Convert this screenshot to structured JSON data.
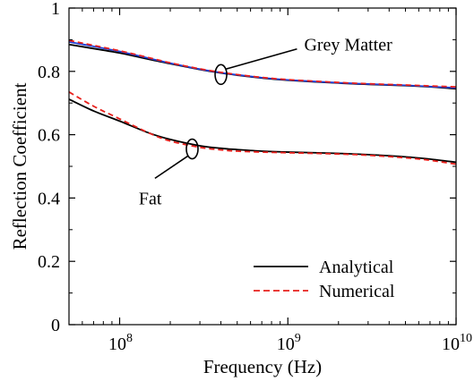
{
  "chart_data": {
    "type": "line",
    "xlabel": "Frequency (Hz)",
    "ylabel": "Reflection Coefficient",
    "xscale": "log",
    "xlim": [
      50000000,
      10000000000
    ],
    "ylim": [
      0,
      1
    ],
    "xticks": [
      {
        "value": 100000000,
        "base": "10",
        "exp": "8"
      },
      {
        "value": 1000000000,
        "base": "10",
        "exp": "9"
      },
      {
        "value": 10000000000,
        "base": "10",
        "exp": "10"
      }
    ],
    "yticks": [
      {
        "value": 0,
        "label": "0"
      },
      {
        "value": 0.2,
        "label": "0.2"
      },
      {
        "value": 0.4,
        "label": "0.4"
      },
      {
        "value": 0.6,
        "label": "0.6"
      },
      {
        "value": 0.8,
        "label": "0.8"
      },
      {
        "value": 1,
        "label": "1"
      }
    ],
    "grid": false,
    "legend_position": "bottom-right",
    "legend": [
      {
        "label": "Analytical",
        "color": "#000000",
        "style": "solid"
      },
      {
        "label": "Numerical",
        "color": "#e8201c",
        "style": "dashed"
      }
    ],
    "series": [
      {
        "group": "Grey Matter",
        "method": "Analytical",
        "color": "#000000",
        "dash": "",
        "x": [
          50000000,
          70000000,
          100000000,
          150000000,
          200000000,
          300000000,
          400000000,
          500000000,
          700000000,
          1000000000,
          2000000000,
          3000000000,
          5000000000,
          7000000000,
          10000000000
        ],
        "y": [
          0.885,
          0.872,
          0.858,
          0.838,
          0.824,
          0.806,
          0.795,
          0.788,
          0.779,
          0.772,
          0.763,
          0.759,
          0.755,
          0.751,
          0.745
        ]
      },
      {
        "group": "Grey Matter",
        "method": "Blue overlay",
        "color": "#1f3fd6",
        "dash": "",
        "x": [
          50000000,
          70000000,
          100000000,
          150000000,
          200000000,
          300000000,
          400000000,
          500000000,
          700000000,
          1000000000,
          2000000000,
          3000000000,
          5000000000,
          7000000000,
          10000000000
        ],
        "y": [
          0.893,
          0.879,
          0.863,
          0.841,
          0.826,
          0.807,
          0.796,
          0.789,
          0.78,
          0.773,
          0.764,
          0.76,
          0.756,
          0.752,
          0.748
        ]
      },
      {
        "group": "Grey Matter",
        "method": "Numerical",
        "color": "#e8201c",
        "dash": "6,4",
        "x": [
          50000000,
          70000000,
          100000000,
          150000000,
          200000000,
          300000000,
          400000000,
          500000000,
          700000000,
          1000000000,
          2000000000,
          3000000000,
          5000000000,
          7000000000,
          10000000000
        ],
        "y": [
          0.898,
          0.882,
          0.865,
          0.843,
          0.827,
          0.808,
          0.797,
          0.79,
          0.781,
          0.774,
          0.765,
          0.761,
          0.757,
          0.754,
          0.751
        ]
      },
      {
        "group": "Fat",
        "method": "Analytical",
        "color": "#000000",
        "dash": "",
        "x": [
          50000000,
          70000000,
          100000000,
          150000000,
          200000000,
          300000000,
          400000000,
          500000000,
          700000000,
          1000000000,
          2000000000,
          3000000000,
          5000000000,
          7000000000,
          10000000000
        ],
        "y": [
          0.712,
          0.675,
          0.643,
          0.605,
          0.585,
          0.565,
          0.557,
          0.553,
          0.548,
          0.545,
          0.541,
          0.537,
          0.53,
          0.523,
          0.513
        ]
      },
      {
        "group": "Fat",
        "method": "Numerical",
        "color": "#e8201c",
        "dash": "6,4",
        "x": [
          50000000,
          70000000,
          100000000,
          150000000,
          200000000,
          300000000,
          400000000,
          500000000,
          700000000,
          1000000000,
          2000000000,
          3000000000,
          5000000000,
          7000000000,
          10000000000
        ],
        "y": [
          0.735,
          0.69,
          0.65,
          0.605,
          0.58,
          0.56,
          0.552,
          0.548,
          0.545,
          0.543,
          0.539,
          0.535,
          0.527,
          0.519,
          0.507
        ]
      }
    ],
    "annotations": [
      {
        "text": "Grey Matter",
        "ellipse_at": [
          400000000,
          0.79
        ],
        "label_at": [
          1250000000,
          0.885
        ]
      },
      {
        "text": "Fat",
        "ellipse_at": [
          270000000,
          0.555
        ],
        "label_at": [
          130000000,
          0.4
        ]
      }
    ]
  }
}
